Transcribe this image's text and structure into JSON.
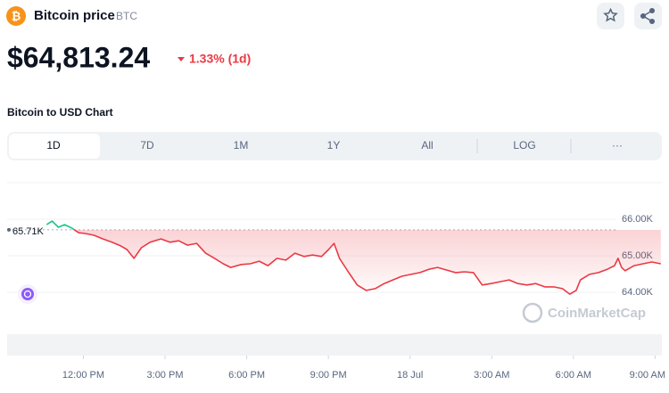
{
  "header": {
    "title": "Bitcoin price",
    "symbol": "BTC",
    "price": "$64,813.24",
    "change": "1.33% (1d)"
  },
  "chart_heading": "Bitcoin to USD Chart",
  "tabs": [
    "1D",
    "7D",
    "1M",
    "1Y",
    "All",
    "LOG",
    "···"
  ],
  "watermark": "CoinMarketCap",
  "chart_data": {
    "type": "line",
    "color_up": "#16c784",
    "color_down": "#ea3943",
    "reference": {
      "value": 65710,
      "label": "65.71K"
    },
    "x": [
      10.65,
      10.85,
      11.08,
      11.31,
      11.57,
      11.83,
      12.06,
      12.39,
      12.72,
      13.05,
      13.37,
      13.6,
      13.86,
      14.13,
      14.45,
      14.85,
      15.18,
      15.5,
      15.83,
      16.16,
      16.49,
      16.82,
      17.14,
      17.41,
      17.8,
      18.13,
      18.46,
      18.78,
      19.11,
      19.44,
      19.77,
      20.1,
      20.42,
      20.75,
      21.01,
      21.21,
      21.41,
      21.73,
      22.06,
      22.39,
      22.72,
      23.05,
      23.37,
      23.7,
      24.03,
      24.36,
      24.69,
      25.01,
      25.34,
      25.67,
      26,
      26.33,
      26.65,
      26.98,
      27.31,
      27.64,
      27.96,
      28.29,
      28.62,
      28.95,
      29.28,
      29.6,
      29.87,
      30.1,
      30.26,
      30.59,
      30.92,
      31.24,
      31.51,
      31.64,
      31.77,
      31.9,
      32.23,
      32.56,
      32.88,
      33.21
    ],
    "values": [
      65850,
      65950,
      65780,
      65850,
      65760,
      65630,
      65610,
      65560,
      65460,
      65370,
      65270,
      65170,
      64930,
      65220,
      65370,
      65460,
      65370,
      65410,
      65290,
      65340,
      65070,
      64930,
      64780,
      64680,
      64760,
      64780,
      64850,
      64730,
      64930,
      64880,
      65070,
      64980,
      65020,
      64980,
      65170,
      65340,
      64930,
      64560,
      64200,
      64050,
      64100,
      64240,
      64340,
      64440,
      64490,
      64540,
      64630,
      64680,
      64610,
      64540,
      64560,
      64540,
      64200,
      64240,
      64290,
      64340,
      64240,
      64200,
      64240,
      64150,
      64150,
      64100,
      63950,
      64050,
      64340,
      64490,
      64540,
      64630,
      64730,
      64930,
      64680,
      64590,
      64730,
      64780,
      64830,
      64780
    ],
    "xlim": [
      9.2,
      33.25
    ],
    "ylim": [
      63000,
      67000
    ],
    "yticks": [
      {
        "value": 64000,
        "label": "64.00K"
      },
      {
        "value": 65000,
        "label": "65.00K"
      },
      {
        "value": 66000,
        "label": "66.00K"
      }
    ],
    "xticks": [
      {
        "value": 12,
        "label": "12:00 PM"
      },
      {
        "value": 15,
        "label": "3:00 PM"
      },
      {
        "value": 18,
        "label": "6:00 PM"
      },
      {
        "value": 21,
        "label": "9:00 PM"
      },
      {
        "value": 24,
        "label": "18 Jul"
      },
      {
        "value": 27,
        "label": "3:00 AM"
      },
      {
        "value": 30,
        "label": "6:00 AM"
      },
      {
        "value": 33,
        "label": "9:00 AM"
      }
    ],
    "grid": true
  }
}
